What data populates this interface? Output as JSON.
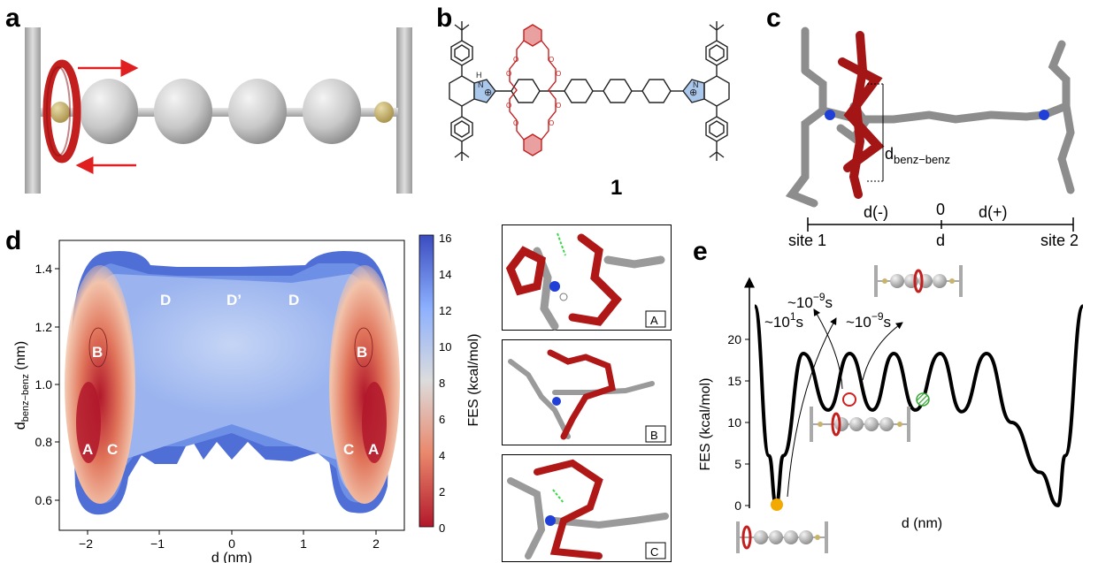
{
  "panel_labels": {
    "a": "a",
    "b": "b",
    "c": "c",
    "d": "d",
    "e": "e"
  },
  "colors": {
    "ring_red": "#c41f1f",
    "bead_gray": "#c8c8c8",
    "stopper_gold": "#c9b26a",
    "arrow_red": "#e02020",
    "bond_gray": "#9a9a9a",
    "nitrogen_blue": "#1f3fd6",
    "hbond_green": "#39d84a",
    "fes_low": "#b2182b",
    "fes_mid": "#dcdcdc",
    "fes_high": "#3b4cc0",
    "marker_orange": "#f2a900",
    "marker_green": "#3aa63a"
  },
  "panel_b": {
    "compound_label": "1",
    "nh_label": "H",
    "plus_label": "⊕",
    "n_label": "N",
    "o_label": "O"
  },
  "panel_c": {
    "distance_label": "d",
    "distance_subscript": "benz−benz",
    "d_minus": "d(-)",
    "zero": "0",
    "d_plus": "d(+)",
    "axis_label": "d",
    "site1": "site 1",
    "site2": "site 2"
  },
  "panel_d": {
    "ylabel": "d",
    "ylabel_sub": "benz−benz",
    "ylabel_unit": "(nm)",
    "xlabel": "d (nm)",
    "colorbar_label": "FES (kcal/mol)",
    "region_labels": {
      "A": "A",
      "B": "B",
      "C": "C",
      "D": "D",
      "Dp": "D’"
    }
  },
  "snapshots": [
    "A",
    "B",
    "C"
  ],
  "panel_e": {
    "ylabel": "FES (kcal/mol)",
    "xlabel": "d (nm)",
    "ann_left": "~10",
    "ann_left_exp": "1",
    "ann_top": "~10",
    "ann_top_exp": "−9",
    "ann_right": "~10",
    "ann_right_exp": "−9",
    "unit_s": "s"
  },
  "chart_data": [
    {
      "type": "heatmap",
      "title": "",
      "xlabel": "d (nm)",
      "ylabel": "d benz−benz (nm)",
      "xlim": [
        -2.4,
        2.4
      ],
      "ylim": [
        0.52,
        1.5
      ],
      "xticks": [
        -2,
        -1,
        0,
        1,
        2
      ],
      "yticks": [
        0.6,
        0.8,
        1.0,
        1.2,
        1.4
      ],
      "colorbar": {
        "label": "FES (kcal/mol)",
        "min": 0,
        "max": 16,
        "ticks": [
          0,
          2,
          4,
          6,
          8,
          10,
          12,
          14,
          16
        ]
      },
      "regions": [
        {
          "label": "A",
          "d": -2.0,
          "benz": 0.8
        },
        {
          "label": "C",
          "d": -1.65,
          "benz": 0.8
        },
        {
          "label": "B",
          "d": -1.9,
          "benz": 1.1
        },
        {
          "label": "D",
          "d": -1.0,
          "benz": 1.4
        },
        {
          "label": "D’",
          "d": 0.0,
          "benz": 1.4
        },
        {
          "label": "D",
          "d": 0.95,
          "benz": 1.4
        },
        {
          "label": "B",
          "d": 1.9,
          "benz": 1.1
        },
        {
          "label": "C",
          "d": 1.65,
          "benz": 0.8
        },
        {
          "label": "A",
          "d": 2.0,
          "benz": 0.8
        }
      ]
    },
    {
      "type": "line",
      "title": "",
      "xlabel": "d (nm)",
      "ylabel": "FES (kcal/mol)",
      "ylim": [
        0,
        25
      ],
      "yticks": [
        0,
        5,
        10,
        15,
        20
      ],
      "series": [
        {
          "x": [
            -2.3,
            -2.1,
            -2.0,
            -1.9,
            -1.62,
            -1.27,
            -0.97,
            -0.65,
            -0.35,
            -0.05,
            0.3,
            0.6,
            0.95,
            1.3,
            1.7,
            1.95,
            2.05,
            2.3
          ],
          "values": [
            24,
            6,
            0,
            6,
            18.3,
            11.5,
            18.3,
            11.5,
            18.3,
            11.5,
            18.3,
            11.3,
            18.3,
            10,
            4,
            0,
            6,
            24
          ]
        }
      ],
      "markers": [
        {
          "d": -2.0,
          "fes": 0,
          "color": "orange"
        },
        {
          "d": -1.27,
          "fes": 11.5,
          "style": "open red ring"
        },
        {
          "d": -0.65,
          "fes": 11.5,
          "style": "hatched green"
        }
      ],
      "annotations": [
        "~10^1 s",
        "~10^-9 s",
        "~10^-9 s"
      ]
    }
  ]
}
